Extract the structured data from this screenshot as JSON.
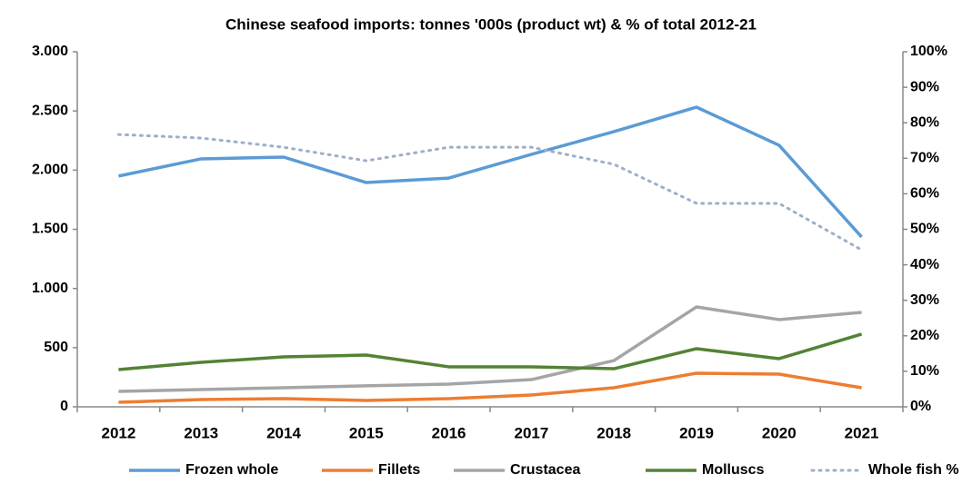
{
  "chart_data": {
    "type": "line",
    "title": "Chinese seafood imports: tonnes '000s (product wt) & % of total 2012-21",
    "categories": [
      "2012",
      "2013",
      "2014",
      "2015",
      "2016",
      "2017",
      "2018",
      "2019",
      "2020",
      "2021"
    ],
    "series": [
      {
        "name": "Frozen whole",
        "color": "#5b9bd5",
        "style": "solid",
        "values": [
          1950,
          2095,
          2110,
          1895,
          1933,
          2133,
          2325,
          2532,
          2210,
          1435
        ]
      },
      {
        "name": "Fillets",
        "color": "#ed7d31",
        "style": "solid",
        "values": [
          38,
          61,
          69,
          54,
          69,
          100,
          161,
          284,
          276,
          161
        ]
      },
      {
        "name": "Crustacea",
        "color": "#a5a5a5",
        "style": "solid",
        "values": [
          130,
          146,
          161,
          177,
          192,
          230,
          391,
          844,
          737,
          798
        ]
      },
      {
        "name": "Molluscs",
        "color": "#548235",
        "style": "solid",
        "values": [
          315,
          376,
          422,
          437,
          338,
          338,
          322,
          491,
          407,
          614
        ]
      },
      {
        "name": "Whole fish %",
        "color": "#9dafc8",
        "style": "dotted",
        "axis": "y2",
        "values": [
          76.7,
          75.7,
          73.1,
          69.3,
          73.1,
          73.1,
          68.3,
          57.3,
          57.3,
          44.2
        ]
      }
    ],
    "ylim": [
      0,
      3000
    ],
    "yticks": [
      0,
      500,
      {
        "value": 1000,
        "label": "1.000"
      },
      {
        "value": 1500,
        "label": "1.500"
      },
      {
        "value": 2000,
        "label": "2.000"
      },
      {
        "value": 2500,
        "label": "2.500"
      },
      {
        "value": 3000,
        "label": "3.000"
      }
    ],
    "y2lim": [
      0,
      100
    ],
    "y2ticks": [
      {
        "value": 0,
        "label": "0%"
      },
      {
        "value": 10,
        "label": "10%"
      },
      {
        "value": 20,
        "label": "20%"
      },
      {
        "value": 30,
        "label": "30%"
      },
      {
        "value": 40,
        "label": "40%"
      },
      {
        "value": 50,
        "label": "50%"
      },
      {
        "value": 60,
        "label": "60%"
      },
      {
        "value": 70,
        "label": "70%"
      },
      {
        "value": 80,
        "label": "80%"
      },
      {
        "value": 90,
        "label": "90%"
      },
      {
        "value": 100,
        "label": "100%"
      }
    ],
    "grid": false,
    "legend": "bottom"
  }
}
